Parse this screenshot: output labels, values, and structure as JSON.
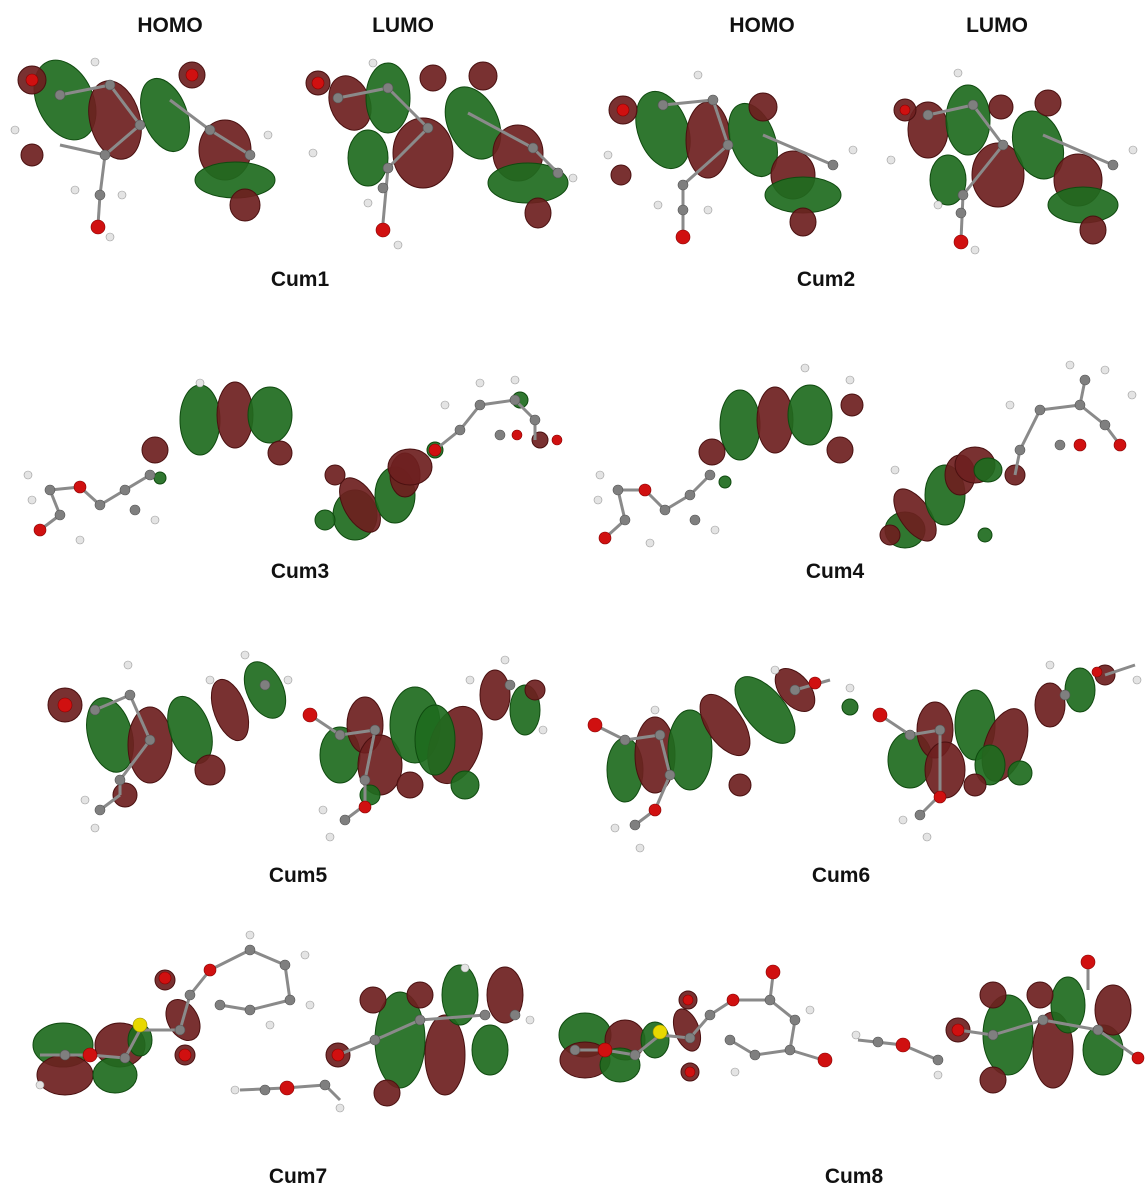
{
  "column_headers": [
    "HOMO",
    "LUMO",
    "HOMO",
    "LUMO"
  ],
  "molecules": [
    {
      "label": "Cum1"
    },
    {
      "label": "Cum2"
    },
    {
      "label": "Cum3"
    },
    {
      "label": "Cum4"
    },
    {
      "label": "Cum5"
    },
    {
      "label": "Cum6"
    },
    {
      "label": "Cum7"
    },
    {
      "label": "Cum8"
    }
  ],
  "colors": {
    "lobe_positive": "#1e6b1e",
    "lobe_negative": "#6e1f1f",
    "carbon": "#7f7f7f",
    "hydrogen": "#e4e4e4",
    "oxygen": "#d01010",
    "sulfur": "#e8d800"
  }
}
